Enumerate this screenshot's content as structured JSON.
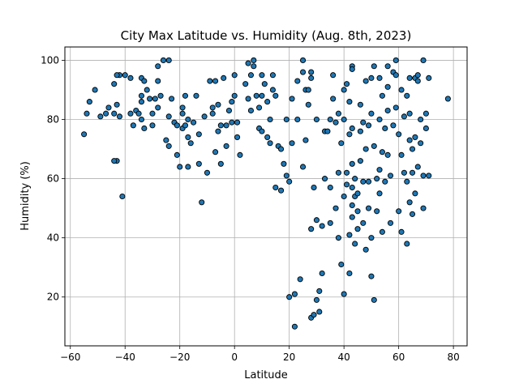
{
  "chart_data": {
    "type": "scatter",
    "title": "City Max Latitude vs. Humidity (Aug. 8th, 2023)",
    "xlabel": "Latitude",
    "ylabel": "Humidity (%)",
    "xlim": [
      -62,
      85
    ],
    "ylim": [
      3.5,
      104.5
    ],
    "xticks": [
      -60,
      -40,
      -20,
      0,
      20,
      40,
      60,
      80
    ],
    "yticks": [
      20,
      40,
      60,
      80,
      100
    ],
    "grid": true,
    "marker_color": "#1f77b4",
    "marker_edge_color": "#000000",
    "points": [
      [
        -55,
        75
      ],
      [
        -54,
        82
      ],
      [
        -53,
        86
      ],
      [
        -51,
        90
      ],
      [
        -49,
        81
      ],
      [
        -47,
        82
      ],
      [
        -46,
        84
      ],
      [
        -44,
        82
      ],
      [
        -43,
        85
      ],
      [
        -43,
        66
      ],
      [
        -44,
        66
      ],
      [
        -42,
        95
      ],
      [
        -43,
        95
      ],
      [
        -44,
        92
      ],
      [
        -41,
        54
      ],
      [
        -40,
        95
      ],
      [
        -42,
        81
      ],
      [
        -38,
        94
      ],
      [
        -38,
        82
      ],
      [
        -37,
        78
      ],
      [
        -36,
        83
      ],
      [
        -35,
        82
      ],
      [
        -34,
        86
      ],
      [
        -34,
        94
      ],
      [
        -33,
        93
      ],
      [
        -34,
        88
      ],
      [
        -34,
        80
      ],
      [
        -33,
        77
      ],
      [
        -32,
        90
      ],
      [
        -31,
        87
      ],
      [
        -30,
        82
      ],
      [
        -30,
        78
      ],
      [
        -29,
        87
      ],
      [
        -28,
        84
      ],
      [
        -28,
        93
      ],
      [
        -28,
        98
      ],
      [
        -27,
        88
      ],
      [
        -26,
        100
      ],
      [
        -25,
        73
      ],
      [
        -24,
        100
      ],
      [
        -24,
        81
      ],
      [
        -24,
        71
      ],
      [
        -23,
        87
      ],
      [
        -22,
        79
      ],
      [
        -21,
        78
      ],
      [
        -21,
        68
      ],
      [
        -20,
        64
      ],
      [
        -19,
        84
      ],
      [
        -19,
        82
      ],
      [
        -19,
        77
      ],
      [
        -18,
        88
      ],
      [
        -18,
        78
      ],
      [
        -17,
        74
      ],
      [
        -17,
        64
      ],
      [
        -17,
        80
      ],
      [
        -16,
        72
      ],
      [
        -15,
        79
      ],
      [
        -14,
        88
      ],
      [
        -13,
        75
      ],
      [
        -13,
        65
      ],
      [
        -12,
        52
      ],
      [
        -11,
        81
      ],
      [
        -10,
        62
      ],
      [
        -9,
        93
      ],
      [
        -8,
        84
      ],
      [
        -8,
        82
      ],
      [
        -7,
        69
      ],
      [
        -7,
        93
      ],
      [
        -6,
        85
      ],
      [
        -6,
        76
      ],
      [
        -5,
        78
      ],
      [
        -5,
        65
      ],
      [
        -4,
        94
      ],
      [
        -3,
        78
      ],
      [
        -3,
        71
      ],
      [
        -2,
        83
      ],
      [
        -1,
        86
      ],
      [
        -1,
        79
      ],
      [
        0,
        95
      ],
      [
        0,
        88
      ],
      [
        1,
        79
      ],
      [
        1,
        74
      ],
      [
        2,
        68
      ],
      [
        4,
        92
      ],
      [
        5,
        99
      ],
      [
        5,
        87
      ],
      [
        6,
        83
      ],
      [
        6,
        95
      ],
      [
        7,
        100
      ],
      [
        7,
        98
      ],
      [
        8,
        88
      ],
      [
        9,
        84
      ],
      [
        9,
        77
      ],
      [
        10,
        95
      ],
      [
        10,
        88
      ],
      [
        10,
        76
      ],
      [
        11,
        92
      ],
      [
        12,
        74
      ],
      [
        12,
        86
      ],
      [
        13,
        80
      ],
      [
        13,
        72
      ],
      [
        14,
        90
      ],
      [
        14,
        95
      ],
      [
        15,
        88
      ],
      [
        15,
        57
      ],
      [
        16,
        71
      ],
      [
        17,
        70
      ],
      [
        17,
        56
      ],
      [
        18,
        65
      ],
      [
        19,
        61
      ],
      [
        19,
        80
      ],
      [
        20,
        20
      ],
      [
        20,
        59
      ],
      [
        21,
        72
      ],
      [
        21,
        87
      ],
      [
        22,
        21
      ],
      [
        22,
        10
      ],
      [
        23,
        93
      ],
      [
        23,
        80
      ],
      [
        24,
        26
      ],
      [
        25,
        100
      ],
      [
        25,
        96
      ],
      [
        25,
        64
      ],
      [
        26,
        90
      ],
      [
        26,
        73
      ],
      [
        27,
        90
      ],
      [
        27,
        85
      ],
      [
        28,
        96
      ],
      [
        28,
        94
      ],
      [
        28,
        43
      ],
      [
        28,
        13
      ],
      [
        29,
        14
      ],
      [
        29,
        57
      ],
      [
        30,
        19
      ],
      [
        30,
        46
      ],
      [
        30,
        80
      ],
      [
        31,
        22
      ],
      [
        31,
        15
      ],
      [
        32,
        44
      ],
      [
        32,
        28
      ],
      [
        33,
        76
      ],
      [
        33,
        60
      ],
      [
        34,
        76
      ],
      [
        35,
        45
      ],
      [
        35,
        57
      ],
      [
        35,
        80
      ],
      [
        36,
        95
      ],
      [
        36,
        87
      ],
      [
        37,
        79
      ],
      [
        37,
        50
      ],
      [
        38,
        62
      ],
      [
        38,
        82
      ],
      [
        38,
        40
      ],
      [
        39,
        72
      ],
      [
        39,
        31
      ],
      [
        40,
        21
      ],
      [
        40,
        90
      ],
      [
        40,
        80
      ],
      [
        40,
        54
      ],
      [
        41,
        58
      ],
      [
        41,
        62
      ],
      [
        41,
        92
      ],
      [
        42,
        41
      ],
      [
        42,
        75
      ],
      [
        42,
        86
      ],
      [
        42,
        28
      ],
      [
        43,
        98
      ],
      [
        43,
        97
      ],
      [
        43,
        77
      ],
      [
        43,
        65
      ],
      [
        43,
        57
      ],
      [
        43,
        51
      ],
      [
        43,
        47
      ],
      [
        44,
        54
      ],
      [
        44,
        60
      ],
      [
        44,
        38
      ],
      [
        45,
        55
      ],
      [
        45,
        49
      ],
      [
        45,
        43
      ],
      [
        46,
        76
      ],
      [
        46,
        66
      ],
      [
        46,
        85
      ],
      [
        47,
        79
      ],
      [
        47,
        59
      ],
      [
        47,
        45
      ],
      [
        48,
        36
      ],
      [
        48,
        70
      ],
      [
        48,
        93
      ],
      [
        49,
        78
      ],
      [
        49,
        59
      ],
      [
        49,
        50
      ],
      [
        50,
        94
      ],
      [
        50,
        82
      ],
      [
        50,
        40
      ],
      [
        50,
        27
      ],
      [
        51,
        19
      ],
      [
        51,
        98
      ],
      [
        51,
        71
      ],
      [
        52,
        49
      ],
      [
        52,
        60
      ],
      [
        53,
        94
      ],
      [
        53,
        80
      ],
      [
        53,
        63
      ],
      [
        53,
        55
      ],
      [
        54,
        42
      ],
      [
        54,
        69
      ],
      [
        54,
        88
      ],
      [
        55,
        77
      ],
      [
        55,
        59
      ],
      [
        56,
        98
      ],
      [
        56,
        91
      ],
      [
        56,
        83
      ],
      [
        56,
        68
      ],
      [
        57,
        61
      ],
      [
        57,
        45
      ],
      [
        58,
        96
      ],
      [
        58,
        78
      ],
      [
        59,
        100
      ],
      [
        59,
        95
      ],
      [
        59,
        84
      ],
      [
        60,
        49
      ],
      [
        60,
        75
      ],
      [
        61,
        90
      ],
      [
        61,
        68
      ],
      [
        61,
        42
      ],
      [
        62,
        81
      ],
      [
        62,
        62
      ],
      [
        63,
        38
      ],
      [
        63,
        59
      ],
      [
        63,
        88
      ],
      [
        64,
        94
      ],
      [
        64,
        82
      ],
      [
        64,
        73
      ],
      [
        64,
        52
      ],
      [
        65,
        70
      ],
      [
        65,
        62
      ],
      [
        65,
        48
      ],
      [
        66,
        55
      ],
      [
        66,
        94
      ],
      [
        66,
        74
      ],
      [
        67,
        93
      ],
      [
        67,
        64
      ],
      [
        67,
        95
      ],
      [
        68,
        80
      ],
      [
        68,
        72
      ],
      [
        69,
        61
      ],
      [
        69,
        50
      ],
      [
        69,
        100
      ],
      [
        70,
        77
      ],
      [
        70,
        82
      ],
      [
        71,
        94
      ],
      [
        71,
        61
      ],
      [
        78,
        87
      ]
    ]
  }
}
